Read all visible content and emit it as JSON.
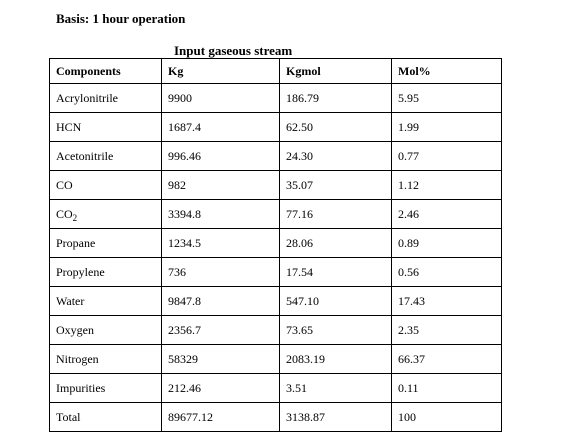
{
  "basis": "Basis: 1 hour operation",
  "caption": "Input gaseous stream",
  "headers": {
    "components": "Components",
    "kg": "Kg",
    "kgmol": "Kgmol",
    "molpct": "Mol%"
  },
  "rows": [
    {
      "component": "Acrylonitrile",
      "kg": "9900",
      "kgmol": "186.79",
      "molpct": "5.95"
    },
    {
      "component": "HCN",
      "kg": "1687.4",
      "kgmol": "62.50",
      "molpct": "1.99"
    },
    {
      "component": "Acetonitrile",
      "kg": "996.46",
      "kgmol": "24.30",
      "molpct": "0.77"
    },
    {
      "component": "CO",
      "kg": "982",
      "kgmol": "35.07",
      "molpct": "1.12"
    },
    {
      "component": "CO",
      "component_sub": "2",
      "kg": "3394.8",
      "kgmol": "77.16",
      "molpct": "2.46"
    },
    {
      "component": "Propane",
      "kg": "1234.5",
      "kgmol": "28.06",
      "molpct": "0.89"
    },
    {
      "component": "Propylene",
      "kg": "736",
      "kgmol": "17.54",
      "molpct": "0.56"
    },
    {
      "component": "Water",
      "kg": "9847.8",
      "kgmol": "547.10",
      "molpct": "17.43"
    },
    {
      "component": "Oxygen",
      "kg": "2356.7",
      "kgmol": "73.65",
      "molpct": "2.35"
    },
    {
      "component": "Nitrogen",
      "kg": "58329",
      "kgmol": "2083.19",
      "molpct": "66.37"
    },
    {
      "component": "Impurities",
      "kg": "212.46",
      "kgmol": "3.51",
      "molpct": "0.11"
    },
    {
      "component": "Total",
      "kg": "89677.12",
      "kgmol": "3138.87",
      "molpct": "100"
    }
  ]
}
